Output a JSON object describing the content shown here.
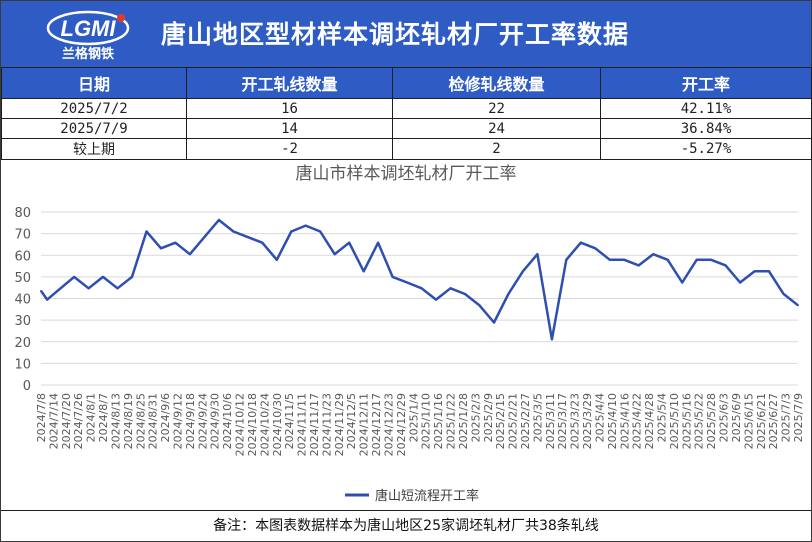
{
  "header": {
    "title": "唐山地区型材样本调坯轧材厂开工率数据",
    "logo_text": "LGMI",
    "logo_subtitle": "兰格钢铁"
  },
  "table": {
    "headers": [
      "日期",
      "开工轧线数量",
      "检修轧线数量",
      "开工率"
    ],
    "rows": [
      [
        "2025/7/2",
        "16",
        "22",
        "42.11%"
      ],
      [
        "2025/7/9",
        "14",
        "24",
        "36.84%"
      ],
      [
        "较上期",
        "-2",
        "2",
        "-5.27%"
      ]
    ]
  },
  "chart_data": {
    "type": "line",
    "title": "唐山市样本调坯轧材厂开工率",
    "ylim": [
      0,
      80
    ],
    "yticks": [
      0,
      10,
      20,
      30,
      40,
      50,
      60,
      70,
      80
    ],
    "legend_position": "bottom",
    "grid": true,
    "x": [
      "2024/7/8",
      "2024/7/14",
      "2024/7/20",
      "2024/7/26",
      "2024/8/1",
      "2024/8/7",
      "2024/8/13",
      "2024/8/19",
      "2024/8/25",
      "2024/8/31",
      "2024/9/6",
      "2024/9/12",
      "2024/9/18",
      "2024/9/24",
      "2024/9/30",
      "2024/10/6",
      "2024/10/12",
      "2024/10/18",
      "2024/10/24",
      "2024/10/30",
      "2024/11/5",
      "2024/11/11",
      "2024/11/17",
      "2024/11/23",
      "2024/11/29",
      "2024/12/5",
      "2024/12/11",
      "2024/12/17",
      "2024/12/23",
      "2024/12/29",
      "2025/1/4",
      "2025/1/10",
      "2025/1/16",
      "2025/1/22",
      "2025/1/28",
      "2025/2/3",
      "2025/2/9",
      "2025/2/15",
      "2025/2/21",
      "2025/2/27",
      "2025/3/5",
      "2025/3/11",
      "2025/3/17",
      "2025/3/23",
      "2025/3/29",
      "2025/4/4",
      "2025/4/10",
      "2025/4/16",
      "2025/4/22",
      "2025/4/28",
      "2025/5/4",
      "2025/5/10",
      "2025/5/16",
      "2025/5/22",
      "2025/5/28",
      "2025/6/3",
      "2025/6/9",
      "2025/6/15",
      "2025/6/21",
      "2025/6/27",
      "2025/7/3",
      "2025/7/9"
    ],
    "points": [
      [
        "2024/7/8",
        43.5
      ],
      [
        "2024/7/11",
        39.5
      ],
      [
        "2024/7/24",
        50
      ],
      [
        "2024/7/31",
        44.7
      ],
      [
        "2024/8/7",
        50
      ],
      [
        "2024/8/14",
        44.7
      ],
      [
        "2024/8/21",
        50
      ],
      [
        "2024/8/28",
        71
      ],
      [
        "2024/9/4",
        63.2
      ],
      [
        "2024/9/11",
        65.8
      ],
      [
        "2024/9/18",
        60.5
      ],
      [
        "2024/9/25",
        68.4
      ],
      [
        "2024/10/2",
        76.3
      ],
      [
        "2024/10/9",
        71
      ],
      [
        "2024/10/16",
        68.4
      ],
      [
        "2024/10/23",
        65.8
      ],
      [
        "2024/10/30",
        57.9
      ],
      [
        "2024/11/6",
        71
      ],
      [
        "2024/11/13",
        73.7
      ],
      [
        "2024/11/20",
        71
      ],
      [
        "2024/11/27",
        60.5
      ],
      [
        "2024/12/4",
        65.8
      ],
      [
        "2024/12/11",
        52.6
      ],
      [
        "2024/12/18",
        65.8
      ],
      [
        "2024/12/25",
        50
      ],
      [
        "2025/1/1",
        47.4
      ],
      [
        "2025/1/8",
        44.7
      ],
      [
        "2025/1/15",
        39.5
      ],
      [
        "2025/1/22",
        44.7
      ],
      [
        "2025/1/29",
        42.1
      ],
      [
        "2025/2/5",
        36.8
      ],
      [
        "2025/2/12",
        28.9
      ],
      [
        "2025/2/19",
        42.1
      ],
      [
        "2025/2/26",
        52.6
      ],
      [
        "2025/3/5",
        60.5
      ],
      [
        "2025/3/12",
        21.1
      ],
      [
        "2025/3/19",
        57.9
      ],
      [
        "2025/3/26",
        65.8
      ],
      [
        "2025/4/2",
        63.2
      ],
      [
        "2025/4/9",
        57.9
      ],
      [
        "2025/4/16",
        57.9
      ],
      [
        "2025/4/23",
        55.3
      ],
      [
        "2025/4/30",
        60.5
      ],
      [
        "2025/5/7",
        57.9
      ],
      [
        "2025/5/14",
        47.4
      ],
      [
        "2025/5/21",
        57.9
      ],
      [
        "2025/5/28",
        57.9
      ],
      [
        "2025/6/4",
        55.3
      ],
      [
        "2025/6/11",
        47.4
      ],
      [
        "2025/6/18",
        52.6
      ],
      [
        "2025/6/25",
        52.6
      ],
      [
        "2025/7/2",
        42.11
      ],
      [
        "2025/7/9",
        36.84
      ]
    ],
    "series": [
      {
        "name": "唐山短流程开工率",
        "color": "#2e4fb0"
      }
    ]
  },
  "footer": {
    "note": "备注：本图表数据样本为唐山地区25家调坯轧材厂共38条轧线"
  },
  "colors": {
    "header_bg": "#2e5cc4",
    "line": "#2e4fb0",
    "grid": "#d9d9d9"
  }
}
